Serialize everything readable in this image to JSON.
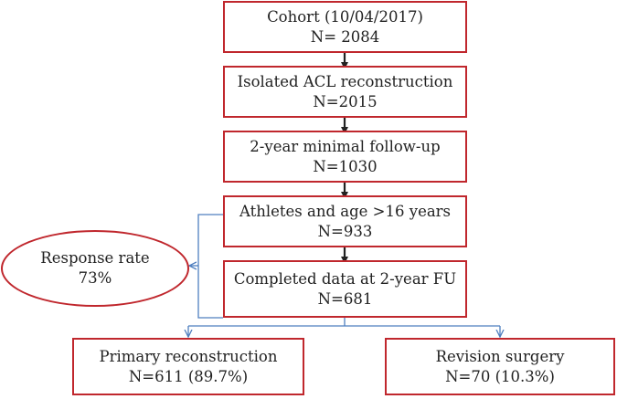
{
  "flowchart": {
    "boxes": [
      {
        "line1": "Cohort (10/04/2017)",
        "line2": "N= 2084"
      },
      {
        "line1": "Isolated ACL reconstruction",
        "line2": "N=2015"
      },
      {
        "line1": "2-year minimal follow-up",
        "line2": "N=1030"
      },
      {
        "line1": "Athletes and age >16 years",
        "line2": "N=933"
      },
      {
        "line1": "Completed data at 2-year FU",
        "line2": "N=681"
      }
    ],
    "response": {
      "line1": "Response rate",
      "line2": "73%"
    },
    "primary": {
      "line1": "Primary reconstruction",
      "line2": "N=611 (89.7%)"
    },
    "revision": {
      "line1": "Revision surgery",
      "line2": "N=70 (10.3%)"
    },
    "colors": {
      "box_border": "#c0272d",
      "arrow_dark": "#222222",
      "connector_blue": "#4f7fbf"
    }
  }
}
